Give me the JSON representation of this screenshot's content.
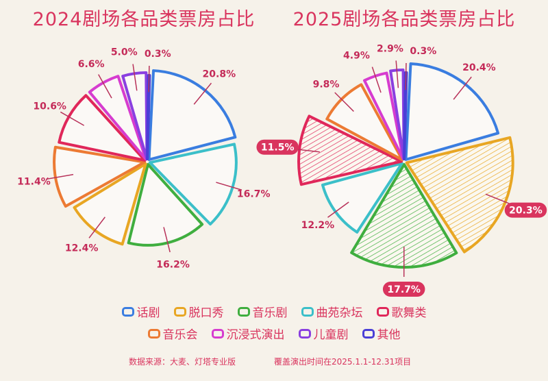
{
  "chart_data": [
    {
      "type": "pie",
      "title": "2024剧场各品类票房占比",
      "categories": [
        "话剧",
        "曲苑杂坛",
        "音乐剧",
        "脱口秀",
        "音乐会",
        "歌舞类",
        "沉浸式演出",
        "儿童剧",
        "其他"
      ],
      "values": [
        20.8,
        16.7,
        16.2,
        12.4,
        11.4,
        10.6,
        6.6,
        5.0,
        0.3
      ],
      "labels": [
        "20.8%",
        "16.7%",
        "16.2%",
        "12.4%",
        "11.4%",
        "10.6%",
        "6.6%",
        "5.0%",
        "0.3%"
      ],
      "highlighted": []
    },
    {
      "type": "pie",
      "title": "2025剧场各品类票房占比",
      "categories": [
        "话剧",
        "脱口秀",
        "音乐剧",
        "曲苑杂坛",
        "歌舞类",
        "音乐会",
        "沉浸式演出",
        "儿童剧",
        "其他"
      ],
      "values": [
        20.4,
        20.3,
        17.7,
        12.2,
        11.5,
        9.8,
        4.9,
        2.9,
        0.3
      ],
      "labels": [
        "20.4%",
        "20.3%",
        "17.7%",
        "12.2%",
        "11.5%",
        "9.8%",
        "4.9%",
        "2.9%",
        "0.3%"
      ],
      "highlighted": [
        "脱口秀",
        "音乐剧",
        "歌舞类"
      ]
    }
  ],
  "colors": {
    "话剧": "#3a7de0",
    "脱口秀": "#e8a623",
    "音乐剧": "#3fae3f",
    "曲苑杂坛": "#3bbfc9",
    "歌舞类": "#e0275a",
    "音乐会": "#ec7a33",
    "沉浸式演出": "#d63ccf",
    "儿童剧": "#8a3fe0",
    "其他": "#4a3fd6"
  },
  "legend": {
    "row1": [
      "话剧",
      "脱口秀",
      "音乐剧",
      "曲苑杂坛",
      "歌舞类"
    ],
    "row2": [
      "音乐会",
      "沉浸式演出",
      "儿童剧",
      "其他"
    ]
  },
  "footer": {
    "source": "数据来源：大麦、灯塔专业版",
    "coverage": "覆盖演出时间在2025.1.1-12.31项目"
  }
}
